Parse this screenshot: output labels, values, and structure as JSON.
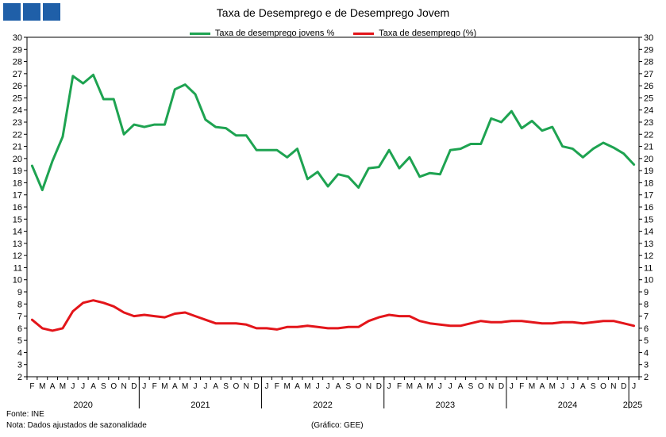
{
  "title": "Taxa de Desemprego e de Desemprego Jovem",
  "logo": "gee-logo",
  "footer": {
    "source": "Fonte: INE",
    "note": "Nota: Dados ajustados de sazonalidade",
    "credit": "(Gráfico: GEE)"
  },
  "colors": {
    "youth": "#1ea351",
    "total": "#e3151a"
  },
  "chart_data": {
    "type": "line",
    "title": "Taxa de Desemprego e de Desemprego Jovem",
    "ylim": [
      2,
      30
    ],
    "yticks": [
      2,
      3,
      4,
      5,
      6,
      7,
      8,
      9,
      10,
      11,
      12,
      13,
      14,
      15,
      16,
      17,
      18,
      19,
      20,
      21,
      22,
      23,
      24,
      25,
      26,
      27,
      28,
      29,
      30
    ],
    "grid": false,
    "legend": "top-center",
    "month_labels": [
      "F",
      "M",
      "A",
      "M",
      "J",
      "J",
      "A",
      "S",
      "O",
      "N",
      "D",
      "J",
      "F",
      "M",
      "A",
      "M",
      "J",
      "J",
      "A",
      "S",
      "O",
      "N",
      "D",
      "J",
      "F",
      "M",
      "A",
      "M",
      "J",
      "J",
      "A",
      "S",
      "O",
      "N",
      "D",
      "J",
      "F",
      "M",
      "A",
      "M",
      "J",
      "J",
      "A",
      "S",
      "O",
      "N",
      "D",
      "J",
      "F",
      "M",
      "A",
      "M",
      "J",
      "J",
      "A",
      "S",
      "O",
      "N",
      "D",
      "J"
    ],
    "year_labels": [
      "2020",
      "2021",
      "2022",
      "2023",
      "2024",
      "2025"
    ],
    "year_spans": [
      [
        0,
        10
      ],
      [
        11,
        22
      ],
      [
        23,
        34
      ],
      [
        35,
        46
      ],
      [
        47,
        58
      ],
      [
        59,
        59
      ]
    ],
    "series": [
      {
        "name": "Taxa de desemprego jovens %",
        "values": [
          19.4,
          17.4,
          19.8,
          21.8,
          26.8,
          26.2,
          26.9,
          24.9,
          24.9,
          22.0,
          22.8,
          22.6,
          22.8,
          22.8,
          25.7,
          26.1,
          25.3,
          23.2,
          22.6,
          22.5,
          21.9,
          21.9,
          20.7,
          20.7,
          20.7,
          20.1,
          20.8,
          18.3,
          18.9,
          17.7,
          18.7,
          18.5,
          17.6,
          19.2,
          19.3,
          20.7,
          19.2,
          20.1,
          18.5,
          18.8,
          18.7,
          20.7,
          20.8,
          21.2,
          21.2,
          23.3,
          23.0,
          23.9,
          22.5,
          23.1,
          22.3,
          22.6,
          21.0,
          20.8,
          20.1,
          20.8,
          21.3,
          20.9,
          20.4,
          19.5
        ]
      },
      {
        "name": "Taxa de desemprego (%)",
        "values": [
          6.7,
          6.0,
          5.8,
          6.0,
          7.4,
          8.1,
          8.3,
          8.1,
          7.8,
          7.3,
          7.0,
          7.1,
          7.0,
          6.9,
          7.2,
          7.3,
          7.0,
          6.7,
          6.4,
          6.4,
          6.4,
          6.3,
          6.0,
          6.0,
          5.9,
          6.1,
          6.1,
          6.2,
          6.1,
          6.0,
          6.0,
          6.1,
          6.1,
          6.6,
          6.9,
          7.1,
          7.0,
          7.0,
          6.6,
          6.4,
          6.3,
          6.2,
          6.2,
          6.4,
          6.6,
          6.5,
          6.5,
          6.6,
          6.6,
          6.5,
          6.4,
          6.4,
          6.5,
          6.5,
          6.4,
          6.5,
          6.6,
          6.6,
          6.4,
          6.2
        ]
      }
    ]
  }
}
